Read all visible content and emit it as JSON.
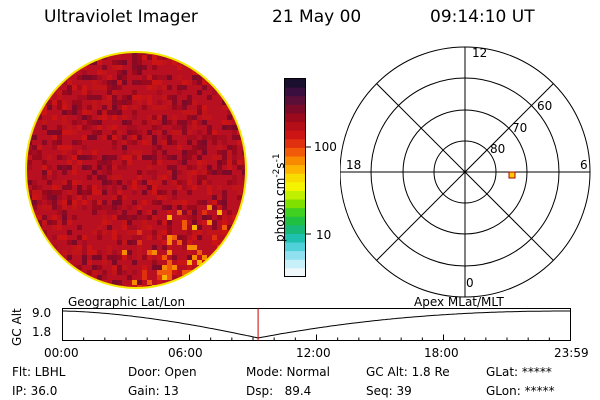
{
  "header": {
    "title": "Ultraviolet Imager",
    "date": "21 May 00",
    "time": "09:14:10 UT"
  },
  "colorbar": {
    "unit_label": "photon cm",
    "unit_sup1": "-2",
    "unit_mid": "s",
    "unit_sup2": "-1",
    "ticks": [
      "100",
      "10"
    ],
    "colors_top_to_bottom": [
      "#1a0f2e",
      "#3a0f40",
      "#5a0f38",
      "#7a0a28",
      "#9a0a1c",
      "#b40f18",
      "#cc1414",
      "#e03010",
      "#f05a08",
      "#f88a00",
      "#fcb400",
      "#f8dc00",
      "#f4f400",
      "#c0f000",
      "#80e000",
      "#40d020",
      "#20c040",
      "#18b878",
      "#20c0b0",
      "#50d0d8",
      "#90e0f0",
      "#c8f0f8",
      "#f0f8fc"
    ]
  },
  "polar": {
    "labels": [
      "12",
      "18",
      "6",
      "0",
      "60",
      "70",
      "80"
    ],
    "marker_color": "#ffcc00"
  },
  "geo": {
    "left_label": "Geographic Lat/Lon",
    "right_label": "Apex MLat/MLT",
    "yaxis_title": "GC Alt",
    "y_top": "9.0",
    "y_bottom": "1.8",
    "x_ticks": [
      "00:00",
      "06:00",
      "12:00",
      "18:00",
      "23:59"
    ],
    "current_time_fraction": 0.385,
    "marker_color": "#cc0000"
  },
  "info": {
    "flt": "Flt: LBHL",
    "ip": "IP: 36.0",
    "door": "Door: Open",
    "gain": "Gain: 13",
    "mode": "Mode: Normal",
    "dsp": "Dsp:   89.4",
    "gcalt": "GC Alt: 1.8 Re",
    "seq": "Seq: 39",
    "glat": "GLat: *****",
    "glon": "GLon: *****"
  },
  "image": {
    "base_color": "#b81020",
    "rim_color": "#f4e800"
  }
}
